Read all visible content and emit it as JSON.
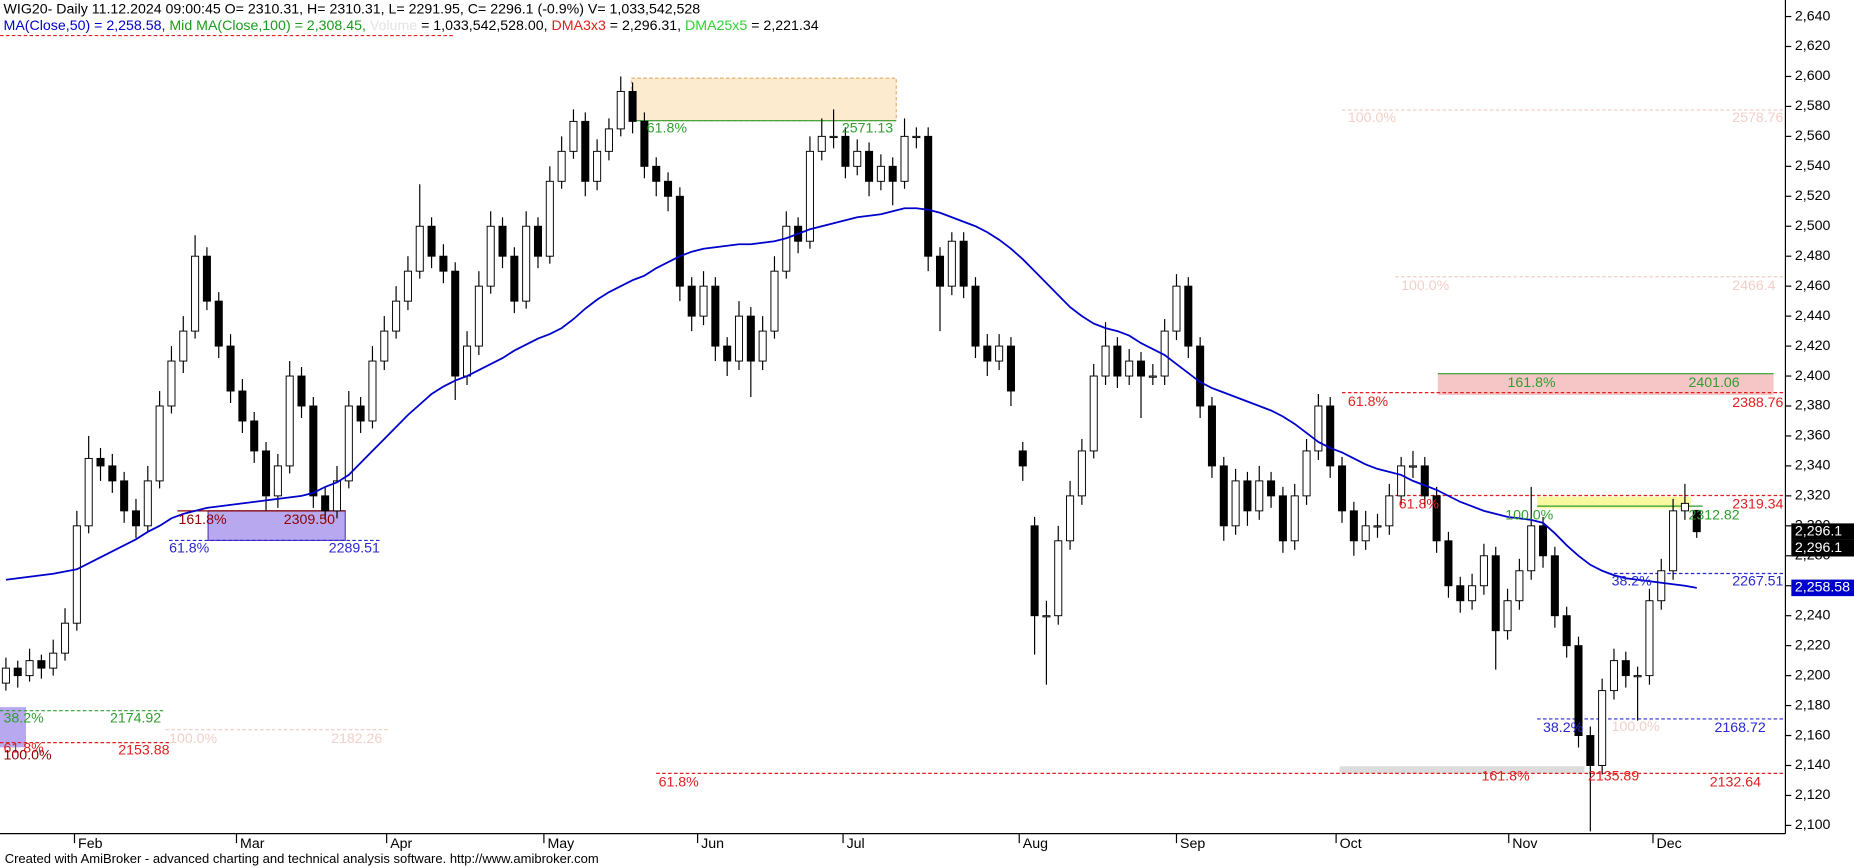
{
  "chart_data": {
    "type": "candlestick",
    "header": "WIG20- Daily 11.12.2024 09:00:45 O= 2310.31, H= 2310.31, L= 2291.95, C= 2296.1 (-0.9%) V= 1,033,542,528",
    "legend": [
      {
        "text": "MA(Close,50) = 2,258.58, ",
        "color": "#0000cc"
      },
      {
        "text": "Mid MA(Close,100) = 2,308.45, ",
        "color": "#1a9a1a"
      },
      {
        "text": "Volume ",
        "color": "#e4e4e4"
      },
      {
        "text": "= 1,033,542,528.00, ",
        "color": "#000000"
      },
      {
        "text": "DMA3x3 ",
        "color": "#e02020"
      },
      {
        "text": "= 2,296.31, ",
        "color": "#000000"
      },
      {
        "text": "DMA25x5 ",
        "color": "#30d030"
      },
      {
        "text": "= 2,221.34",
        "color": "#000000"
      }
    ],
    "footer": "Created with AmiBroker - advanced charting and technical analysis software. http://www.amibroker.com",
    "up_color": "#ffffff",
    "down_color": "#000000",
    "open": [
      2195,
      2205,
      2200,
      2210,
      2205,
      2215,
      2235,
      2300,
      2345,
      2340,
      2330,
      2310,
      2300,
      2330,
      2380,
      2410,
      2430,
      2480,
      2450,
      2420,
      2390,
      2370,
      2350,
      2320,
      2340,
      2400,
      2380,
      2320,
      2310,
      2330,
      2380,
      2370,
      2410,
      2430,
      2450,
      2470,
      2500,
      2480,
      2470,
      2400,
      2420,
      2460,
      2500,
      2480,
      2450,
      2500,
      2480,
      2530,
      2550,
      2570,
      2530,
      2550,
      2565,
      2590,
      2570,
      2540,
      2530,
      2520,
      2460,
      2440,
      2460,
      2420,
      2410,
      2440,
      2410,
      2430,
      2470,
      2500,
      2490,
      2550,
      2560,
      2560,
      2540,
      2550,
      2530,
      2540,
      2530,
      2560,
      2560,
      2480,
      2460,
      2490,
      2460,
      2420,
      2410,
      2420,
      2350,
      2300,
      2240,
      2240,
      2290,
      2320,
      2350,
      2400,
      2420,
      2400,
      2410,
      2400,
      2400,
      2430,
      2460,
      2420,
      2380,
      2340,
      2300,
      2330,
      2310,
      2330,
      2320,
      2290,
      2320,
      2350,
      2380,
      2340,
      2310,
      2290,
      2300,
      2300,
      2320,
      2340,
      2340,
      2320,
      2290,
      2260,
      2250,
      2260,
      2280,
      2230,
      2250,
      2270,
      2300,
      2280,
      2240,
      2220,
      2160,
      2140,
      2190,
      2210,
      2200,
      2200,
      2250,
      2270,
      2310,
      2310.31
    ],
    "high": [
      2212,
      2210,
      2218,
      2214,
      2224,
      2245,
      2310,
      2360,
      2352,
      2348,
      2336,
      2318,
      2340,
      2390,
      2420,
      2440,
      2494,
      2486,
      2456,
      2428,
      2398,
      2376,
      2356,
      2348,
      2410,
      2406,
      2386,
      2326,
      2340,
      2390,
      2386,
      2420,
      2440,
      2460,
      2480,
      2528,
      2506,
      2488,
      2476,
      2430,
      2470,
      2510,
      2506,
      2486,
      2510,
      2506,
      2540,
      2560,
      2578,
      2576,
      2558,
      2572,
      2600,
      2596,
      2576,
      2546,
      2536,
      2526,
      2466,
      2470,
      2466,
      2426,
      2450,
      2446,
      2440,
      2480,
      2510,
      2506,
      2560,
      2572,
      2578,
      2566,
      2558,
      2556,
      2548,
      2546,
      2572,
      2566,
      2566,
      2486,
      2496,
      2496,
      2466,
      2428,
      2428,
      2426,
      2356,
      2306,
      2250,
      2300,
      2330,
      2358,
      2408,
      2436,
      2426,
      2418,
      2416,
      2408,
      2438,
      2468,
      2466,
      2426,
      2386,
      2346,
      2338,
      2336,
      2340,
      2336,
      2326,
      2328,
      2358,
      2388,
      2386,
      2346,
      2316,
      2310,
      2308,
      2328,
      2346,
      2350,
      2346,
      2326,
      2296,
      2266,
      2268,
      2288,
      2286,
      2258,
      2278,
      2326,
      2306,
      2286,
      2246,
      2226,
      2166,
      2198,
      2218,
      2216,
      2206,
      2258,
      2278,
      2318,
      2328,
      2310.31
    ],
    "low": [
      2190,
      2192,
      2196,
      2198,
      2200,
      2210,
      2230,
      2295,
      2330,
      2322,
      2302,
      2292,
      2296,
      2325,
      2375,
      2402,
      2425,
      2444,
      2412,
      2382,
      2362,
      2342,
      2310,
      2312,
      2335,
      2372,
      2312,
      2304,
      2305,
      2325,
      2362,
      2365,
      2404,
      2425,
      2444,
      2465,
      2472,
      2462,
      2384,
      2394,
      2414,
      2455,
      2472,
      2442,
      2445,
      2472,
      2475,
      2525,
      2545,
      2520,
      2524,
      2544,
      2560,
      2562,
      2532,
      2520,
      2510,
      2450,
      2430,
      2434,
      2410,
      2400,
      2404,
      2386,
      2404,
      2425,
      2465,
      2482,
      2485,
      2544,
      2552,
      2532,
      2534,
      2520,
      2524,
      2514,
      2525,
      2552,
      2470,
      2430,
      2454,
      2452,
      2412,
      2400,
      2404,
      2380,
      2330,
      2214,
      2194,
      2234,
      2284,
      2314,
      2345,
      2394,
      2392,
      2394,
      2372,
      2394,
      2394,
      2424,
      2412,
      2372,
      2332,
      2290,
      2294,
      2300,
      2304,
      2312,
      2282,
      2284,
      2314,
      2344,
      2332,
      2302,
      2280,
      2284,
      2292,
      2294,
      2314,
      2332,
      2312,
      2282,
      2252,
      2242,
      2244,
      2254,
      2204,
      2224,
      2244,
      2264,
      2272,
      2232,
      2212,
      2152,
      2096,
      2134,
      2184,
      2192,
      2170,
      2194,
      2244,
      2264,
      2304,
      2291.95
    ],
    "close": [
      2205,
      2200,
      2210,
      2205,
      2215,
      2235,
      2300,
      2345,
      2340,
      2330,
      2310,
      2300,
      2330,
      2380,
      2410,
      2430,
      2480,
      2450,
      2420,
      2390,
      2370,
      2350,
      2320,
      2340,
      2400,
      2380,
      2320,
      2310,
      2330,
      2380,
      2370,
      2410,
      2430,
      2450,
      2470,
      2500,
      2480,
      2470,
      2400,
      2420,
      2460,
      2500,
      2480,
      2450,
      2500,
      2480,
      2530,
      2550,
      2570,
      2530,
      2550,
      2565,
      2590,
      2570,
      2540,
      2530,
      2520,
      2460,
      2440,
      2460,
      2420,
      2410,
      2440,
      2410,
      2430,
      2470,
      2500,
      2490,
      2550,
      2560,
      2560,
      2540,
      2550,
      2530,
      2540,
      2530,
      2560,
      2560,
      2480,
      2460,
      2490,
      2460,
      2420,
      2410,
      2420,
      2390,
      2340,
      2240,
      2240,
      2290,
      2320,
      2350,
      2400,
      2420,
      2400,
      2410,
      2400,
      2400,
      2430,
      2460,
      2420,
      2380,
      2340,
      2300,
      2330,
      2310,
      2330,
      2320,
      2290,
      2320,
      2350,
      2380,
      2340,
      2310,
      2290,
      2300,
      2300,
      2320,
      2340,
      2340,
      2320,
      2290,
      2260,
      2250,
      2260,
      2280,
      2230,
      2250,
      2270,
      2300,
      2280,
      2240,
      2220,
      2160,
      2140,
      2190,
      2210,
      2200,
      2200,
      2250,
      2270,
      2310,
      2315,
      2296.1
    ],
    "ma": {
      "color": "#0000cc",
      "values": [
        2264,
        2265,
        2266,
        2267,
        2268,
        2269.5,
        2271,
        2275,
        2279,
        2283,
        2287,
        2291,
        2296,
        2300,
        2305,
        2308,
        2310,
        2312,
        2313,
        2314,
        2315,
        2316,
        2317,
        2318,
        2319,
        2320,
        2322,
        2326,
        2329,
        2334,
        2342,
        2350,
        2358,
        2366,
        2374,
        2381,
        2388,
        2393,
        2397,
        2400,
        2404,
        2408,
        2412,
        2417,
        2421,
        2425,
        2428,
        2432,
        2438,
        2445,
        2451,
        2456,
        2460,
        2464,
        2467,
        2472,
        2476,
        2480,
        2483,
        2485,
        2486,
        2487,
        2488,
        2488,
        2489,
        2490,
        2492,
        2495,
        2498,
        2500,
        2502,
        2504,
        2506,
        2507,
        2508,
        2510,
        2512,
        2512,
        2511,
        2509,
        2506,
        2503,
        2500,
        2496,
        2491,
        2485,
        2478,
        2470,
        2462,
        2454,
        2446,
        2440,
        2435,
        2432,
        2430,
        2427,
        2422,
        2418,
        2414,
        2408,
        2402,
        2396,
        2392,
        2389,
        2386,
        2383,
        2380,
        2377,
        2373,
        2368,
        2362,
        2356,
        2352,
        2349,
        2345,
        2341,
        2338,
        2336,
        2334,
        2330,
        2327,
        2324,
        2320,
        2316,
        2313,
        2310,
        2308,
        2306,
        2305,
        2304,
        2302,
        2295,
        2287,
        2280,
        2274,
        2270,
        2267,
        2265,
        2264,
        2263,
        2262,
        2261,
        2260,
        2258.58
      ]
    },
    "ylim": [
      2094.5,
      2651
    ],
    "yticks": [
      {
        "value": 2100,
        "label": "2,100"
      },
      {
        "value": 2120,
        "label": "2,120"
      },
      {
        "value": 2140,
        "label": "2,140"
      },
      {
        "value": 2160,
        "label": "2,160"
      },
      {
        "value": 2180,
        "label": "2,180"
      },
      {
        "value": 2200,
        "label": "2,200"
      },
      {
        "value": 2220,
        "label": "2,220"
      },
      {
        "value": 2240,
        "label": "2,240"
      },
      {
        "value": 2260,
        "label": "2,260"
      },
      {
        "value": 2280,
        "label": "2,280"
      },
      {
        "value": 2300,
        "label": "2,300"
      },
      {
        "value": 2320,
        "label": "2,320"
      },
      {
        "value": 2340,
        "label": "2,340"
      },
      {
        "value": 2360,
        "label": "2,360"
      },
      {
        "value": 2380,
        "label": "2,380"
      },
      {
        "value": 2400,
        "label": "2,400"
      },
      {
        "value": 2420,
        "label": "2,420"
      },
      {
        "value": 2440,
        "label": "2,440"
      },
      {
        "value": 2460,
        "label": "2,460"
      },
      {
        "value": 2480,
        "label": "2,480"
      },
      {
        "value": 2500,
        "label": "2,500"
      },
      {
        "value": 2520,
        "label": "2,520"
      },
      {
        "value": 2540,
        "label": "2,540"
      },
      {
        "value": 2560,
        "label": "2,560"
      },
      {
        "value": 2580,
        "label": "2,580"
      },
      {
        "value": 2600,
        "label": "2,600"
      },
      {
        "value": 2620,
        "label": "2,620"
      },
      {
        "value": 2640,
        "label": "2,640"
      }
    ],
    "xticks": [
      {
        "value": 5.8,
        "label": "Feb"
      },
      {
        "value": 19.5,
        "label": "Mar"
      },
      {
        "value": 32.2,
        "label": "Apr"
      },
      {
        "value": 45.5,
        "label": "May"
      },
      {
        "value": 58.5,
        "label": "Jun"
      },
      {
        "value": 70.8,
        "label": "Jul"
      },
      {
        "value": 85.7,
        "label": "Aug"
      },
      {
        "value": 99,
        "label": "Sep"
      },
      {
        "value": 112.5,
        "label": "Oct"
      },
      {
        "value": 127.1,
        "label": "Nov"
      },
      {
        "value": 139.3,
        "label": "Dec"
      }
    ],
    "price_tags": [
      {
        "value": 2296.1,
        "label": "2,296.1",
        "color": "#000000"
      },
      {
        "value": 2296.1,
        "label": "2,296.1",
        "color": "#000000"
      },
      {
        "value": 2258.58,
        "label": "2,258.58",
        "color": "#0000cc"
      }
    ],
    "annotations": [
      {
        "text": "61.8%",
        "color": "#2e9e2e"
      },
      {
        "text": "2571.13",
        "color": "#2e9e2e"
      },
      {
        "text": "100.0%",
        "color": "#f2cfc8"
      },
      {
        "text": "2578.76",
        "color": "#f2cfc8"
      },
      {
        "text": "100.0%",
        "color": "#f2cfc8"
      },
      {
        "text": "2466.4",
        "color": "#f2cfc8"
      },
      {
        "text": "161.8%",
        "color": "#2e9e2e"
      },
      {
        "text": "2401.06",
        "color": "#2e9e2e"
      },
      {
        "text": "61.8%",
        "color": "#e02020"
      },
      {
        "text": "2388.76",
        "color": "#e02020"
      },
      {
        "text": "61.8%",
        "color": "#e02020"
      },
      {
        "text": "2319.34",
        "color": "#e02020"
      },
      {
        "text": "100.0%",
        "color": "#2e9e2e"
      },
      {
        "text": "2312.82",
        "color": "#2e9e2e"
      },
      {
        "text": "38.2%",
        "color": "#2828d0"
      },
      {
        "text": "2267.51",
        "color": "#2828d0"
      },
      {
        "text": "38.2%",
        "color": "#2828d0"
      },
      {
        "text": "100.0%",
        "color": "#f2cfc8"
      },
      {
        "text": "2168.72",
        "color": "#2828d0"
      },
      {
        "text": "61.8%",
        "color": "#e02020"
      },
      {
        "text": "161.8%",
        "color": "#e02020"
      },
      {
        "text": "2135.89",
        "color": "#e02020"
      },
      {
        "text": "2132.64",
        "color": "#e02020"
      },
      {
        "text": "161.8%",
        "color": "#8b0000"
      },
      {
        "text": "2309.50",
        "color": "#8b0000"
      },
      {
        "text": "61.8%",
        "color": "#2828d0"
      },
      {
        "text": "2289.51",
        "color": "#2828d0"
      },
      {
        "text": "38.2%",
        "color": "#2e9e2e"
      },
      {
        "text": "2174.92",
        "color": "#2e9e2e"
      },
      {
        "text": "61.8%",
        "color": "#e02020"
      },
      {
        "text": "100.0%",
        "color": "#8b0000"
      },
      {
        "text": "2153.88",
        "color": "#e02020"
      },
      {
        "text": "100.0%",
        "color": "#f2cfc8"
      },
      {
        "text": "2182.26",
        "color": "#f2cfc8"
      }
    ]
  }
}
